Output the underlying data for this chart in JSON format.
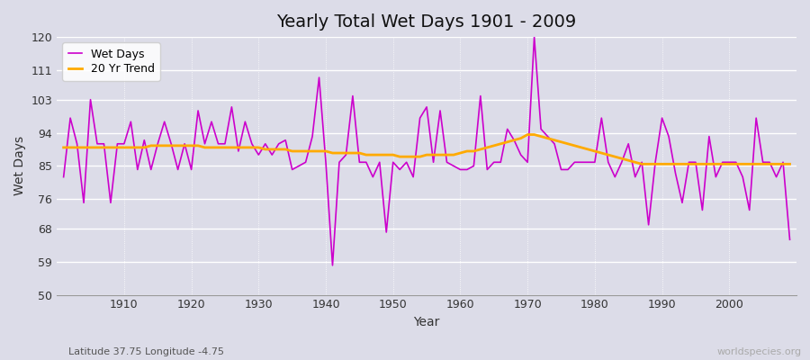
{
  "title": "Yearly Total Wet Days 1901 - 2009",
  "xlabel": "Year",
  "ylabel": "Wet Days",
  "subtitle": "Latitude 37.75 Longitude -4.75",
  "watermark": "worldspecies.org",
  "line_color": "#cc00cc",
  "trend_color": "#ffaa00",
  "bg_color": "#dcdce8",
  "fig_color": "#dcdce8",
  "ylim": [
    50,
    120
  ],
  "yticks": [
    50,
    59,
    68,
    76,
    85,
    94,
    103,
    111,
    120
  ],
  "years": [
    1901,
    1902,
    1903,
    1904,
    1905,
    1906,
    1907,
    1908,
    1909,
    1910,
    1911,
    1912,
    1913,
    1914,
    1915,
    1916,
    1917,
    1918,
    1919,
    1920,
    1921,
    1922,
    1923,
    1924,
    1925,
    1926,
    1927,
    1928,
    1929,
    1930,
    1931,
    1932,
    1933,
    1934,
    1935,
    1936,
    1937,
    1938,
    1939,
    1940,
    1941,
    1942,
    1943,
    1944,
    1945,
    1946,
    1947,
    1948,
    1949,
    1950,
    1951,
    1952,
    1953,
    1954,
    1955,
    1956,
    1957,
    1958,
    1959,
    1960,
    1961,
    1962,
    1963,
    1964,
    1965,
    1966,
    1967,
    1968,
    1969,
    1970,
    1971,
    1972,
    1973,
    1974,
    1975,
    1976,
    1977,
    1978,
    1979,
    1980,
    1981,
    1982,
    1983,
    1984,
    1985,
    1986,
    1987,
    1988,
    1989,
    1990,
    1991,
    1992,
    1993,
    1994,
    1995,
    1996,
    1997,
    1998,
    1999,
    2000,
    2001,
    2002,
    2003,
    2004,
    2005,
    2006,
    2007,
    2008,
    2009
  ],
  "wet_days": [
    82,
    98,
    91,
    75,
    103,
    91,
    91,
    75,
    91,
    91,
    97,
    84,
    92,
    84,
    91,
    97,
    91,
    84,
    91,
    84,
    100,
    91,
    97,
    91,
    91,
    101,
    89,
    97,
    91,
    88,
    91,
    88,
    91,
    92,
    84,
    85,
    86,
    93,
    109,
    86,
    58,
    86,
    88,
    104,
    86,
    86,
    82,
    86,
    67,
    86,
    84,
    86,
    82,
    98,
    101,
    86,
    100,
    86,
    85,
    84,
    84,
    85,
    104,
    84,
    86,
    86,
    95,
    92,
    88,
    86,
    120,
    95,
    93,
    91,
    84,
    84,
    86,
    86,
    86,
    86,
    98,
    86,
    82,
    86,
    91,
    82,
    86,
    69,
    86,
    98,
    93,
    83,
    75,
    86,
    86,
    73,
    93,
    82,
    86,
    86,
    86,
    82,
    73,
    98,
    86,
    86,
    82,
    86,
    65
  ],
  "trend": [
    90,
    90,
    90,
    90,
    90,
    90,
    90,
    90,
    90,
    90,
    90,
    90,
    90,
    90.5,
    90.5,
    90.5,
    90.5,
    90.5,
    90.5,
    90.5,
    90.5,
    90,
    90,
    90,
    90,
    90,
    90,
    90,
    90,
    90,
    89.5,
    89.5,
    89.5,
    89.5,
    89,
    89,
    89,
    89,
    89,
    89,
    88.5,
    88.5,
    88.5,
    88.5,
    88.5,
    88,
    88,
    88,
    88,
    88,
    87.5,
    87.5,
    87.5,
    87.5,
    88,
    88,
    88,
    88,
    88,
    88.5,
    89,
    89,
    89.5,
    90,
    90.5,
    91,
    91.5,
    92,
    92.5,
    93.5,
    93.5,
    93,
    92.5,
    92,
    91.5,
    91,
    90.5,
    90,
    89.5,
    89,
    88.5,
    88,
    87.5,
    87,
    86.5,
    86,
    85.5,
    85.5,
    85.5,
    85.5,
    85.5,
    85.5,
    85.5,
    85.5,
    85.5,
    85.5,
    85.5,
    85.5,
    85.5,
    85.5,
    85.5,
    85.5,
    85.5,
    85.5,
    85.5,
    85.5,
    85.5,
    85.5,
    85.5
  ]
}
